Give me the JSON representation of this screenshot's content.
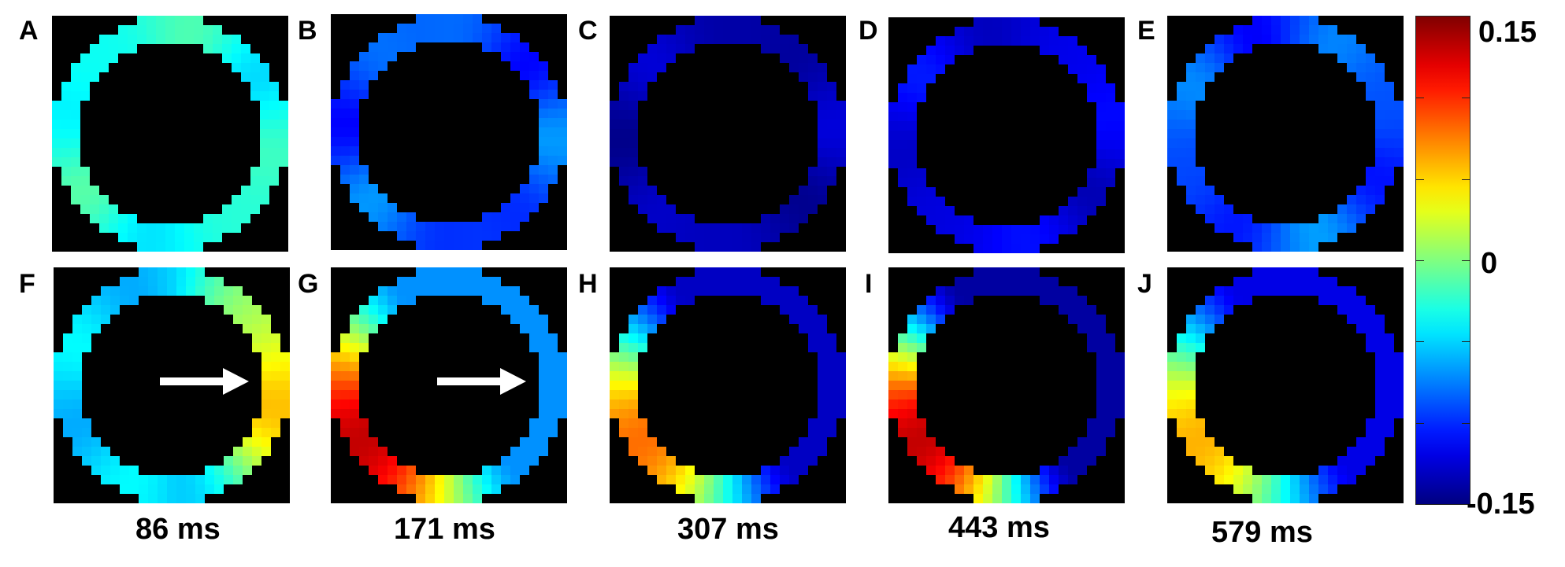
{
  "panels": [
    {
      "id": "A",
      "label": "A",
      "pattern": "uniform",
      "base": -0.03,
      "vary": 0.015
    },
    {
      "id": "B",
      "label": "B",
      "pattern": "uniform",
      "base": -0.09,
      "vary": 0.02
    },
    {
      "id": "C",
      "label": "C",
      "pattern": "uniform",
      "base": -0.135,
      "vary": 0.01
    },
    {
      "id": "D",
      "label": "D",
      "pattern": "uniform",
      "base": -0.12,
      "vary": 0.012
    },
    {
      "id": "E",
      "label": "E",
      "pattern": "uniform",
      "base": -0.09,
      "vary": 0.02
    },
    {
      "id": "F",
      "label": "F",
      "pattern": "hot-right",
      "base": -0.05,
      "hot": 0.05,
      "arrow": true
    },
    {
      "id": "G",
      "label": "G",
      "pattern": "hot-left",
      "base": -0.07,
      "hot": 0.13,
      "arrow": true
    },
    {
      "id": "H",
      "label": "H",
      "pattern": "hot-left",
      "base": -0.13,
      "hot": 0.08,
      "arrow": false
    },
    {
      "id": "I",
      "label": "I",
      "pattern": "hot-left",
      "base": -0.14,
      "hot": 0.13,
      "arrow": false
    },
    {
      "id": "J",
      "label": "J",
      "pattern": "hot-left",
      "base": -0.12,
      "hot": 0.06,
      "arrow": false
    }
  ],
  "times": [
    "86 ms",
    "171 ms",
    "307 ms",
    "443 ms",
    "579 ms"
  ],
  "colorbar": {
    "max_label": "0.15",
    "zero_label": "0",
    "min_label": "-0.15",
    "min": -0.15,
    "max": 0.15,
    "colormap": "jet"
  },
  "colors": {
    "background": "#000000",
    "arrow": "#ffffff"
  }
}
